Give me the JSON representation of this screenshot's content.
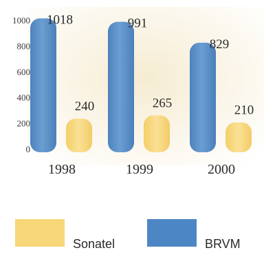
{
  "chart_data": {
    "type": "bar",
    "categories": [
      "1998",
      "1999",
      "2000"
    ],
    "series": [
      {
        "name": "BRVM",
        "values": [
          1018,
          991,
          829
        ],
        "color": "#5b8ec4"
      },
      {
        "name": "Sonatel",
        "values": [
          240,
          265,
          210
        ],
        "color": "#f7d77a"
      }
    ],
    "yticks": [
      "0",
      "200",
      "400",
      "600",
      "800",
      "1000"
    ],
    "ylim": [
      0,
      1000
    ],
    "grid": false,
    "legend_position": "bottom"
  },
  "legend": {
    "sonatel_label": "Sonatel",
    "brvm_label": "BRVM"
  }
}
